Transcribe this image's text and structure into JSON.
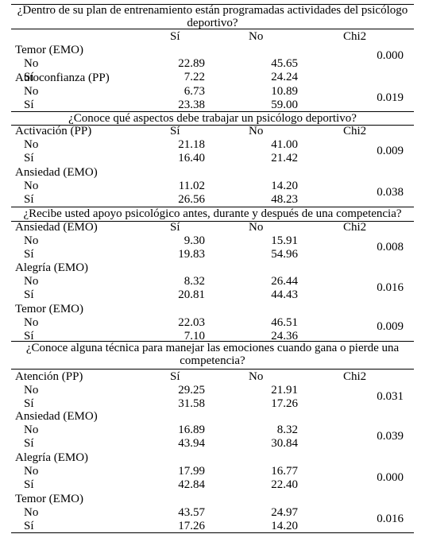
{
  "headers": {
    "col_si": "Sí",
    "col_no": "No",
    "col_chi": "Chi2"
  },
  "sections": [
    {
      "question": "¿Dentro de su plan de entrenamiento están programadas actividades del psicólogo deportivo?",
      "variables": [
        {
          "name": "Temor (EMO)",
          "rows": [
            {
              "label": "No",
              "si": "22.89",
              "no": "45.65"
            },
            {
              "label": "Sí",
              "si": "7.22",
              "no": "24.24"
            }
          ],
          "chi": "0.000"
        },
        {
          "name": "Autoconfianza (PP)",
          "rows": [
            {
              "label": "No",
              "si": "6.73",
              "no": "10.89"
            },
            {
              "label": "Sí",
              "si": "23.38",
              "no": "59.00"
            }
          ],
          "chi": "0.019"
        }
      ]
    },
    {
      "question": "¿Conoce qué aspectos debe trabajar un psicólogo deportivo?",
      "variables": [
        {
          "name": "Activación (PP)",
          "rows": [
            {
              "label": "No",
              "si": "21.18",
              "no": "41.00"
            },
            {
              "label": "Sí",
              "si": "16.40",
              "no": "21.42"
            }
          ],
          "chi": "0.009"
        },
        {
          "name": "Ansiedad (EMO)",
          "rows": [
            {
              "label": "No",
              "si": "11.02",
              "no": "14.20"
            },
            {
              "label": "Sí",
              "si": "26.56",
              "no": "48.23"
            }
          ],
          "chi": "0.038"
        }
      ]
    },
    {
      "question": "¿Recibe usted apoyo psicológico antes, durante y después de una competencia?",
      "variables": [
        {
          "name": "Ansiedad (EMO)",
          "rows": [
            {
              "label": "No",
              "si": "9.30",
              "no": "15.91"
            },
            {
              "label": "Sí",
              "si": "19.83",
              "no": "54.96"
            }
          ],
          "chi": "0.008"
        },
        {
          "name": "Alegría (EMO)",
          "rows": [
            {
              "label": "No",
              "si": "8.32",
              "no": "26.44"
            },
            {
              "label": "Sí",
              "si": "20.81",
              "no": "44.43"
            }
          ],
          "chi": "0.016"
        },
        {
          "name": "Temor (EMO)",
          "rows": [
            {
              "label": "No",
              "si": "22.03",
              "no": "46.51"
            },
            {
              "label": "Sí",
              "si": "7.10",
              "no": "24.36"
            }
          ],
          "chi": "0.009"
        }
      ]
    },
    {
      "question": "¿Conoce alguna técnica para manejar las emociones cuando gana o pierde una competencia?",
      "variables": [
        {
          "name": "Atención (PP)",
          "rows": [
            {
              "label": "No",
              "si": "29.25",
              "no": "21.91"
            },
            {
              "label": "Sí",
              "si": "31.58",
              "no": "17.26"
            }
          ],
          "chi": "0.031"
        },
        {
          "name": "Ansiedad (EMO)",
          "rows": [
            {
              "label": "No",
              "si": "16.89",
              "no": "8.32"
            },
            {
              "label": "Sí",
              "si": "43.94",
              "no": "30.84"
            }
          ],
          "chi": "0.039"
        },
        {
          "name": "Alegría (EMO)",
          "rows": [
            {
              "label": "No",
              "si": "17.99",
              "no": "16.77"
            },
            {
              "label": "Sí",
              "si": "42.84",
              "no": "22.40"
            }
          ],
          "chi": "0.000"
        },
        {
          "name": "Temor (EMO)",
          "rows": [
            {
              "label": "No",
              "si": "43.57",
              "no": "24.97"
            },
            {
              "label": "Sí",
              "si": "17.26",
              "no": "14.20"
            }
          ],
          "chi": "0.016"
        }
      ]
    }
  ]
}
